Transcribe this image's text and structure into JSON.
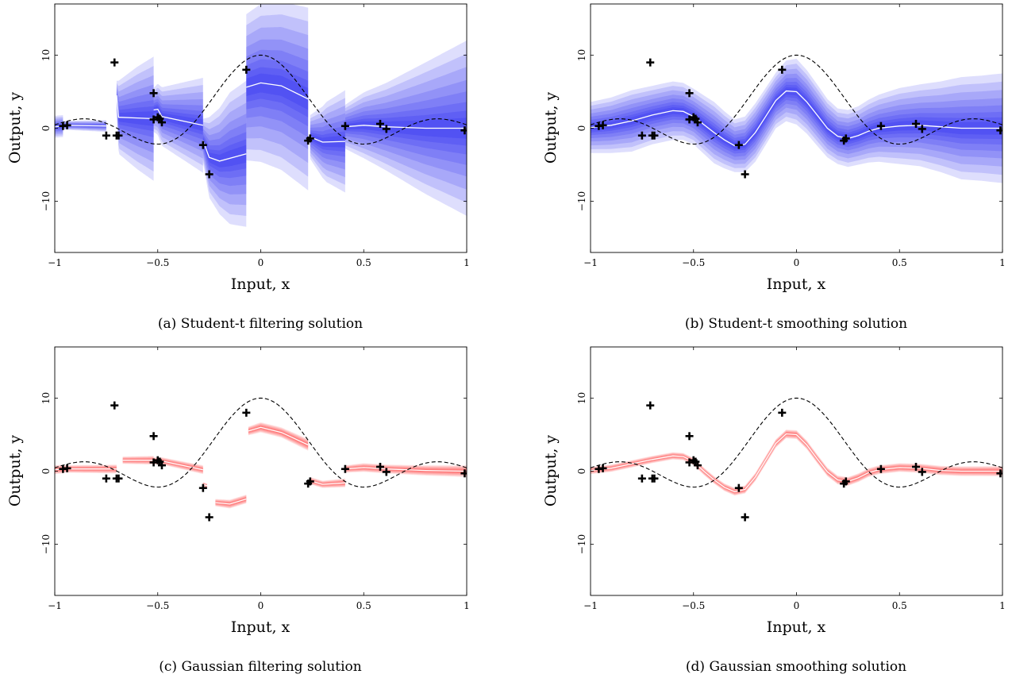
{
  "chart_data": [
    {
      "type": "line",
      "caption": "(a) Student-t filtering solution",
      "xlabel": "Input, x",
      "ylabel": "Output, y",
      "xlim": [
        -1,
        1
      ],
      "ylim": [
        -17,
        17
      ],
      "xticks": [
        -1,
        -0.5,
        0,
        0.5,
        1
      ],
      "yticks": [
        -10,
        0,
        10
      ],
      "band_color": "#0000ee",
      "mean_color": "#ffffff",
      "observations": {
        "x": [
          -0.96,
          -0.94,
          -0.75,
          -0.71,
          -0.69,
          -0.7,
          -0.52,
          -0.52,
          -0.5,
          -0.49,
          -0.48,
          -0.28,
          -0.25,
          -0.07,
          0.23,
          0.24,
          0.41,
          0.58,
          0.61,
          0.99
        ],
        "y": [
          0.3,
          0.4,
          -1.0,
          9.0,
          -1.0,
          -1.0,
          4.8,
          1.2,
          1.5,
          1.3,
          0.8,
          -2.3,
          -6.3,
          8.0,
          -1.7,
          -1.4,
          0.3,
          0.6,
          -0.1,
          -0.3
        ]
      },
      "mean_segments": [
        {
          "x": [
            -1.0,
            -0.96
          ],
          "y": [
            0.2,
            0.3
          ]
        },
        {
          "x": [
            -0.96,
            -0.75
          ],
          "y": [
            0.4,
            0.3
          ]
        },
        {
          "x": [
            -0.7,
            -0.69,
            -0.6,
            -0.52
          ],
          "y": [
            4.5,
            1.5,
            1.4,
            1.3
          ]
        },
        {
          "x": [
            -0.52,
            -0.5,
            -0.48,
            -0.28
          ],
          "y": [
            2.5,
            2.6,
            1.6,
            0.4
          ]
        },
        {
          "x": [
            -0.28,
            -0.25,
            -0.2,
            -0.07
          ],
          "y": [
            -1.7,
            -4.0,
            -4.5,
            -3.5
          ]
        },
        {
          "x": [
            -0.07,
            0.0,
            0.1,
            0.23
          ],
          "y": [
            5.6,
            6.2,
            5.8,
            4.0
          ]
        },
        {
          "x": [
            0.24,
            0.3,
            0.41
          ],
          "y": [
            -1.2,
            -1.9,
            -1.8
          ]
        },
        {
          "x": [
            0.41,
            0.5,
            0.61,
            0.8,
            1.0
          ],
          "y": [
            0.2,
            0.4,
            0.2,
            0.0,
            0.0
          ]
        }
      ],
      "band_segments": [
        {
          "x": [
            -1.0,
            -0.96
          ],
          "s": [
            1.5,
            1.5
          ]
        },
        {
          "x": [
            -0.96,
            -0.75
          ],
          "s": [
            0.6,
            0.8
          ]
        },
        {
          "x": [
            -0.7,
            -0.69,
            -0.6,
            -0.52
          ],
          "s": [
            2.0,
            5.0,
            7.0,
            8.5
          ]
        },
        {
          "x": [
            -0.52,
            -0.48,
            -0.28
          ],
          "s": [
            3.0,
            4.0,
            6.5
          ]
        },
        {
          "x": [
            -0.28,
            -0.25,
            -0.15,
            -0.07
          ],
          "s": [
            3.0,
            5.5,
            9.0,
            10.0
          ]
        },
        {
          "x": [
            -0.07,
            0.0,
            0.1,
            0.23
          ],
          "s": [
            10.0,
            10.8,
            11.5,
            12.5
          ]
        },
        {
          "x": [
            0.24,
            0.32,
            0.41
          ],
          "s": [
            3.0,
            5.5,
            7.0
          ]
        },
        {
          "x": [
            0.41,
            0.5,
            0.61,
            0.8,
            1.0
          ],
          "s": [
            3.0,
            4.5,
            6.0,
            9.0,
            12.0
          ]
        }
      ]
    },
    {
      "type": "line",
      "caption": "(b) Student-t smoothing solution",
      "xlabel": "Input, x",
      "ylabel": "Output, y",
      "xlim": [
        -1,
        1
      ],
      "ylim": [
        -17,
        17
      ],
      "xticks": [
        -1,
        -0.5,
        0,
        0.5,
        1
      ],
      "yticks": [
        -10,
        0,
        10
      ],
      "band_color": "#0000ee",
      "mean_color": "#ffffff",
      "observations": {
        "x": [
          -0.96,
          -0.94,
          -0.75,
          -0.71,
          -0.69,
          -0.7,
          -0.52,
          -0.52,
          -0.5,
          -0.49,
          -0.48,
          -0.28,
          -0.25,
          -0.07,
          0.23,
          0.24,
          0.41,
          0.58,
          0.61,
          0.99
        ],
        "y": [
          0.3,
          0.4,
          -1.0,
          9.0,
          -1.0,
          -1.0,
          4.8,
          1.2,
          1.5,
          1.3,
          0.8,
          -2.3,
          -6.3,
          8.0,
          -1.7,
          -1.4,
          0.3,
          0.6,
          -0.1,
          -0.3
        ]
      },
      "mean_segments": [
        {
          "x": [
            -1.0,
            -0.9,
            -0.8,
            -0.7,
            -0.6,
            -0.55,
            -0.5,
            -0.45,
            -0.4,
            -0.35,
            -0.3,
            -0.25,
            -0.2,
            -0.15,
            -0.1,
            -0.05,
            0.0,
            0.05,
            0.1,
            0.15,
            0.2,
            0.25,
            0.3,
            0.35,
            0.4,
            0.5,
            0.6,
            0.7,
            0.8,
            0.9,
            1.0
          ],
          "y": [
            0.1,
            0.4,
            1.0,
            1.8,
            2.4,
            2.3,
            1.6,
            0.5,
            -0.6,
            -1.6,
            -2.4,
            -2.2,
            -0.6,
            1.6,
            3.8,
            5.1,
            5.0,
            3.6,
            1.8,
            0.0,
            -1.1,
            -1.4,
            -1.0,
            -0.4,
            0.0,
            0.3,
            0.4,
            0.2,
            0.0,
            0.0,
            0.0
          ]
        }
      ],
      "band_segments": [
        {
          "x": [
            -1.0,
            -0.9,
            -0.8,
            -0.7,
            -0.6,
            -0.5,
            -0.4,
            -0.3,
            -0.2,
            -0.1,
            0.0,
            0.1,
            0.2,
            0.3,
            0.4,
            0.5,
            0.6,
            0.7,
            0.8,
            0.9,
            1.0
          ],
          "s": [
            3.5,
            3.8,
            4.2,
            4.0,
            4.0,
            3.8,
            4.2,
            3.6,
            4.0,
            3.8,
            4.5,
            4.2,
            3.8,
            4.0,
            4.6,
            5.2,
            5.6,
            6.2,
            7.0,
            7.2,
            7.5
          ]
        }
      ]
    },
    {
      "type": "line",
      "caption": "(c) Gaussian filtering solution",
      "xlabel": "Input, x",
      "ylabel": "Output, y",
      "xlim": [
        -1,
        1
      ],
      "ylim": [
        -17,
        17
      ],
      "xticks": [
        -1,
        -0.5,
        0,
        0.5,
        1
      ],
      "yticks": [
        -10,
        0,
        10
      ],
      "band_color": "#ff2a2a",
      "mean_color": "#ffffff",
      "observations": {
        "x": [
          -0.96,
          -0.94,
          -0.75,
          -0.71,
          -0.69,
          -0.7,
          -0.52,
          -0.52,
          -0.5,
          -0.49,
          -0.48,
          -0.28,
          -0.25,
          -0.07,
          0.23,
          0.24,
          0.41,
          0.58,
          0.61,
          0.99
        ],
        "y": [
          0.3,
          0.4,
          -1.0,
          9.0,
          -1.0,
          -1.0,
          4.8,
          1.2,
          1.5,
          1.3,
          0.8,
          -2.3,
          -6.3,
          8.0,
          -1.7,
          -1.4,
          0.3,
          0.6,
          -0.1,
          -0.3
        ]
      },
      "mean_segments": [
        {
          "x": [
            -1.0,
            -0.96
          ],
          "y": [
            0.2,
            0.3
          ]
        },
        {
          "x": [
            -0.96,
            -0.7
          ],
          "y": [
            0.3,
            0.3
          ]
        },
        {
          "x": [
            -0.67,
            -0.52
          ],
          "y": [
            1.5,
            1.5
          ]
        },
        {
          "x": [
            -0.52,
            -0.48,
            -0.28
          ],
          "y": [
            1.4,
            1.4,
            0.2
          ]
        },
        {
          "x": [
            -0.28,
            -0.26
          ],
          "y": [
            -1.8,
            -2.0
          ]
        },
        {
          "x": [
            -0.22,
            -0.15,
            -0.07
          ],
          "y": [
            -4.3,
            -4.5,
            -3.8
          ]
        },
        {
          "x": [
            -0.06,
            0.0,
            0.1,
            0.23
          ],
          "y": [
            5.5,
            6.0,
            5.3,
            3.6
          ]
        },
        {
          "x": [
            0.24,
            0.3,
            0.41
          ],
          "y": [
            -1.3,
            -1.8,
            -1.6
          ]
        },
        {
          "x": [
            0.41,
            0.5,
            0.61,
            0.8,
            1.0
          ],
          "y": [
            0.3,
            0.5,
            0.3,
            0.1,
            0.0
          ]
        }
      ],
      "band_segments": [
        {
          "x": [
            -1.0,
            -0.96
          ],
          "s": [
            0.6,
            0.6
          ]
        },
        {
          "x": [
            -0.96,
            -0.7
          ],
          "s": [
            0.5,
            0.6
          ]
        },
        {
          "x": [
            -0.67,
            -0.52
          ],
          "s": [
            0.5,
            0.6
          ]
        },
        {
          "x": [
            -0.52,
            -0.48,
            -0.28
          ],
          "s": [
            0.5,
            0.5,
            0.6
          ]
        },
        {
          "x": [
            -0.28,
            -0.26
          ],
          "s": [
            0.3,
            0.3
          ]
        },
        {
          "x": [
            -0.22,
            -0.15,
            -0.07
          ],
          "s": [
            0.5,
            0.6,
            0.6
          ]
        },
        {
          "x": [
            -0.06,
            0.0,
            0.1,
            0.23
          ],
          "s": [
            0.6,
            0.7,
            0.7,
            0.8
          ]
        },
        {
          "x": [
            0.24,
            0.3,
            0.41
          ],
          "s": [
            0.5,
            0.5,
            0.6
          ]
        },
        {
          "x": [
            0.41,
            0.5,
            0.61,
            0.8,
            1.0
          ],
          "s": [
            0.5,
            0.6,
            0.6,
            0.7,
            0.8
          ]
        }
      ]
    },
    {
      "type": "line",
      "caption": "(d) Gaussian smoothing solution",
      "xlabel": "Input, x",
      "ylabel": "Output, y",
      "xlim": [
        -1,
        1
      ],
      "ylim": [
        -17,
        17
      ],
      "xticks": [
        -1,
        -0.5,
        0,
        0.5,
        1
      ],
      "yticks": [
        -10,
        0,
        10
      ],
      "band_color": "#ff2a2a",
      "mean_color": "#ffffff",
      "observations": {
        "x": [
          -0.96,
          -0.94,
          -0.75,
          -0.71,
          -0.69,
          -0.7,
          -0.52,
          -0.52,
          -0.5,
          -0.49,
          -0.48,
          -0.28,
          -0.25,
          -0.07,
          0.23,
          0.24,
          0.41,
          0.58,
          0.61,
          0.99
        ],
        "y": [
          0.3,
          0.4,
          -1.0,
          9.0,
          -1.0,
          -1.0,
          4.8,
          1.2,
          1.5,
          1.3,
          0.8,
          -2.3,
          -6.3,
          8.0,
          -1.7,
          -1.4,
          0.3,
          0.6,
          -0.1,
          -0.3
        ]
      },
      "mean_segments": [
        {
          "x": [
            -1.0,
            -0.9,
            -0.8,
            -0.7,
            -0.6,
            -0.55,
            -0.5,
            -0.45,
            -0.4,
            -0.35,
            -0.3,
            -0.25,
            -0.2,
            -0.15,
            -0.1,
            -0.05,
            0.0,
            0.05,
            0.1,
            0.15,
            0.2,
            0.25,
            0.3,
            0.35,
            0.4,
            0.5,
            0.6,
            0.7,
            0.8,
            0.9,
            1.0
          ],
          "y": [
            0.1,
            0.4,
            1.0,
            1.6,
            2.1,
            2.0,
            1.3,
            0.0,
            -1.2,
            -2.2,
            -2.8,
            -2.5,
            -0.8,
            1.5,
            3.8,
            5.1,
            5.0,
            3.6,
            1.7,
            -0.1,
            -1.2,
            -1.4,
            -0.9,
            -0.2,
            0.2,
            0.5,
            0.4,
            0.1,
            0.0,
            0.0,
            0.0
          ]
        }
      ],
      "band_segments": [
        {
          "x": [
            -1.0,
            -0.5,
            0.0,
            0.5,
            1.0
          ],
          "s": [
            0.5,
            0.5,
            0.6,
            0.6,
            0.7
          ]
        }
      ]
    }
  ]
}
